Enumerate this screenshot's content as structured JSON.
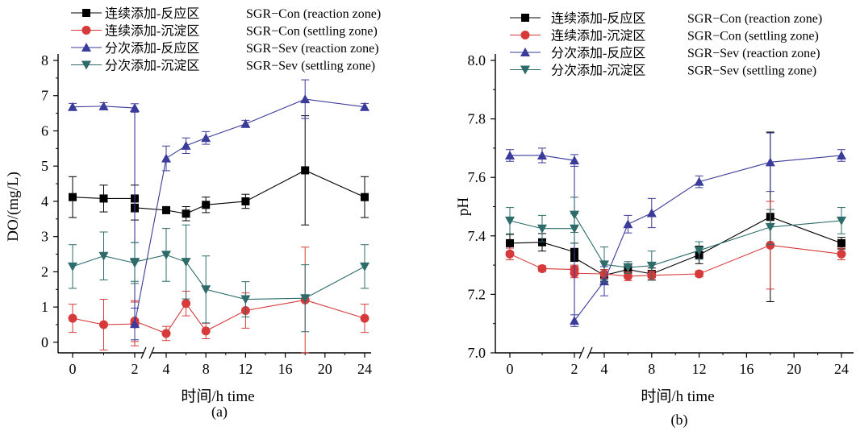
{
  "chart_data": [
    {
      "type": "line",
      "panel_label": "(a)",
      "xlabel": "时间/h    time",
      "ylabel": "DO/(mg/L)",
      "x_ticks": [
        "0",
        "2",
        "4",
        "8",
        "12",
        "16",
        "20",
        "24"
      ],
      "y_ticks": [
        "0",
        "1",
        "2",
        "3",
        "4",
        "5",
        "6",
        "7",
        "8"
      ],
      "ylim": [
        -0.3,
        8
      ],
      "axis_break": "between 2 and 4",
      "grid": false,
      "legend_position": "top",
      "series": [
        {
          "name": "连续添加-反应区",
          "name_en": "SGR−Con (reaction zone)",
          "color": "#000000",
          "marker": "square",
          "x": [
            0,
            1,
            2,
            2,
            4,
            6,
            8,
            12,
            18,
            24
          ],
          "y": [
            4.12,
            4.08,
            4.08,
            3.82,
            3.75,
            3.65,
            3.9,
            4.0,
            4.88,
            4.12
          ],
          "err": [
            0.58,
            0.38,
            0.38,
            0.35,
            0.08,
            0.2,
            0.22,
            0.2,
            1.55,
            0.58
          ]
        },
        {
          "name": "连续添加-沉淀区",
          "name_en": "SGR−Con (settling zone)",
          "color": "#d73a3a",
          "marker": "circle",
          "x": [
            0,
            1,
            2,
            2,
            4,
            6,
            8,
            12,
            18,
            24
          ],
          "y": [
            0.68,
            0.5,
            0.52,
            0.6,
            0.25,
            1.1,
            0.32,
            0.9,
            1.2,
            0.68
          ],
          "err": [
            0.4,
            0.72,
            0.62,
            0.58,
            0.2,
            0.35,
            0.22,
            0.5,
            1.5,
            0.4
          ]
        },
        {
          "name": "分次添加-反应区",
          "name_en": "SGR−Sev (reaction zone)",
          "color": "#3b3b9b",
          "marker": "triangle-up",
          "x": [
            0,
            1,
            2,
            2,
            4,
            6,
            8,
            12,
            18,
            24
          ],
          "y": [
            6.68,
            6.7,
            6.65,
            0.52,
            5.22,
            5.58,
            5.8,
            6.2,
            6.9,
            6.68
          ],
          "err": [
            0.1,
            0.1,
            0.12,
            0.45,
            0.35,
            0.22,
            0.18,
            0.1,
            0.55,
            0.1
          ]
        },
        {
          "name": "分次添加-沉淀区",
          "name_en": "SGR−Sev (settling zone)",
          "color": "#2e6b6b",
          "marker": "triangle-down",
          "x": [
            0,
            1,
            2,
            2,
            4,
            6,
            8,
            12,
            18,
            24
          ],
          "y": [
            2.15,
            2.45,
            2.25,
            2.28,
            2.48,
            2.28,
            1.5,
            1.22,
            1.25,
            2.15
          ],
          "err": [
            0.62,
            0.68,
            0.58,
            0.55,
            0.75,
            1.05,
            0.95,
            0.5,
            0.95,
            0.62
          ]
        }
      ]
    },
    {
      "type": "line",
      "panel_label": "(b)",
      "xlabel": "时间/h    time",
      "ylabel": "pH",
      "x_ticks": [
        "0",
        "2",
        "4",
        "8",
        "12",
        "16",
        "20",
        "24"
      ],
      "y_ticks": [
        "7.0",
        "7.2",
        "7.4",
        "7.6",
        "7.8",
        "8.0"
      ],
      "ylim": [
        7.0,
        8.0
      ],
      "axis_break": "between 2 and 4",
      "grid": false,
      "legend_position": "top",
      "series": [
        {
          "name": "连续添加-反应区",
          "name_en": "SGR−Con (reaction zone)",
          "color": "#000000",
          "marker": "square",
          "x": [
            0,
            1,
            2,
            2,
            4,
            6,
            8,
            12,
            18,
            24
          ],
          "y": [
            7.375,
            7.378,
            7.345,
            7.325,
            7.265,
            7.285,
            7.27,
            7.335,
            7.465,
            7.375
          ],
          "err": [
            0.03,
            0.03,
            0.03,
            0.03,
            0.02,
            0.02,
            0.02,
            0.03,
            0.29,
            0.02
          ]
        },
        {
          "name": "连续添加-沉淀区",
          "name_en": "SGR−Con (settling zone)",
          "color": "#d73a3a",
          "marker": "circle",
          "x": [
            0,
            1,
            2,
            2,
            4,
            6,
            8,
            12,
            18,
            24
          ],
          "y": [
            7.338,
            7.288,
            7.285,
            7.272,
            7.27,
            7.262,
            7.265,
            7.27,
            7.368,
            7.338
          ],
          "err": [
            0.02,
            0.01,
            0.015,
            0.015,
            0.015,
            0.015,
            0.015,
            0.01,
            0.15,
            0.02
          ]
        },
        {
          "name": "分次添加-反应区",
          "name_en": "SGR−Sev (reaction zone)",
          "color": "#3b3b9b",
          "marker": "triangle-up",
          "x": [
            0,
            1,
            2,
            2,
            4,
            6,
            8,
            12,
            18,
            24
          ],
          "y": [
            7.675,
            7.675,
            7.658,
            7.11,
            7.245,
            7.44,
            7.478,
            7.585,
            7.652,
            7.675
          ],
          "err": [
            0.02,
            0.025,
            0.02,
            0.02,
            0.05,
            0.03,
            0.05,
            0.02,
            0.1,
            0.02
          ]
        },
        {
          "name": "分次添加-沉淀区",
          "name_en": "SGR−Sev (settling zone)",
          "color": "#2e6b6b",
          "marker": "triangle-down",
          "x": [
            0,
            1,
            2,
            2,
            4,
            6,
            8,
            12,
            18,
            24
          ],
          "y": [
            7.452,
            7.425,
            7.425,
            7.472,
            7.302,
            7.292,
            7.298,
            7.35,
            7.43,
            7.452
          ],
          "err": [
            0.045,
            0.045,
            0.05,
            0.06,
            0.06,
            0.02,
            0.05,
            0.03,
            0.06,
            0.045
          ]
        }
      ]
    }
  ]
}
